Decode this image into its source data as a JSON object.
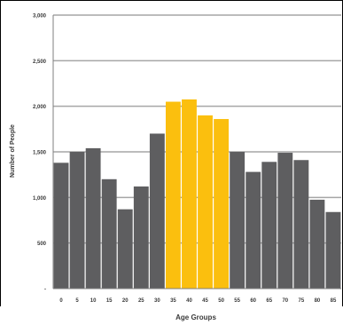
{
  "chart_data": {
    "type": "bar",
    "title": "",
    "xlabel": "Age Groups",
    "ylabel": "Number of People",
    "categories": [
      "0",
      "5",
      "10",
      "15",
      "20",
      "25",
      "30",
      "35",
      "40",
      "45",
      "50",
      "55",
      "60",
      "65",
      "70",
      "75",
      "80",
      "85"
    ],
    "values": [
      1380,
      1500,
      1540,
      1200,
      870,
      1120,
      1700,
      2050,
      2075,
      1900,
      1860,
      1500,
      1280,
      1390,
      1490,
      1410,
      975,
      840
    ],
    "highlighted": [
      "35",
      "40",
      "45",
      "50"
    ],
    "yticks": [
      "-",
      "500",
      "1,000",
      "1,500",
      "2,000",
      "2,500",
      "3,000"
    ],
    "ylim": [
      0,
      3000
    ],
    "grid": true,
    "colors": {
      "bar": "#5e5e60",
      "highlight": "#fbbf0e",
      "grid": "#a6a6a6",
      "axis": "#7f7f7f",
      "text": "#3a3a3a"
    }
  }
}
